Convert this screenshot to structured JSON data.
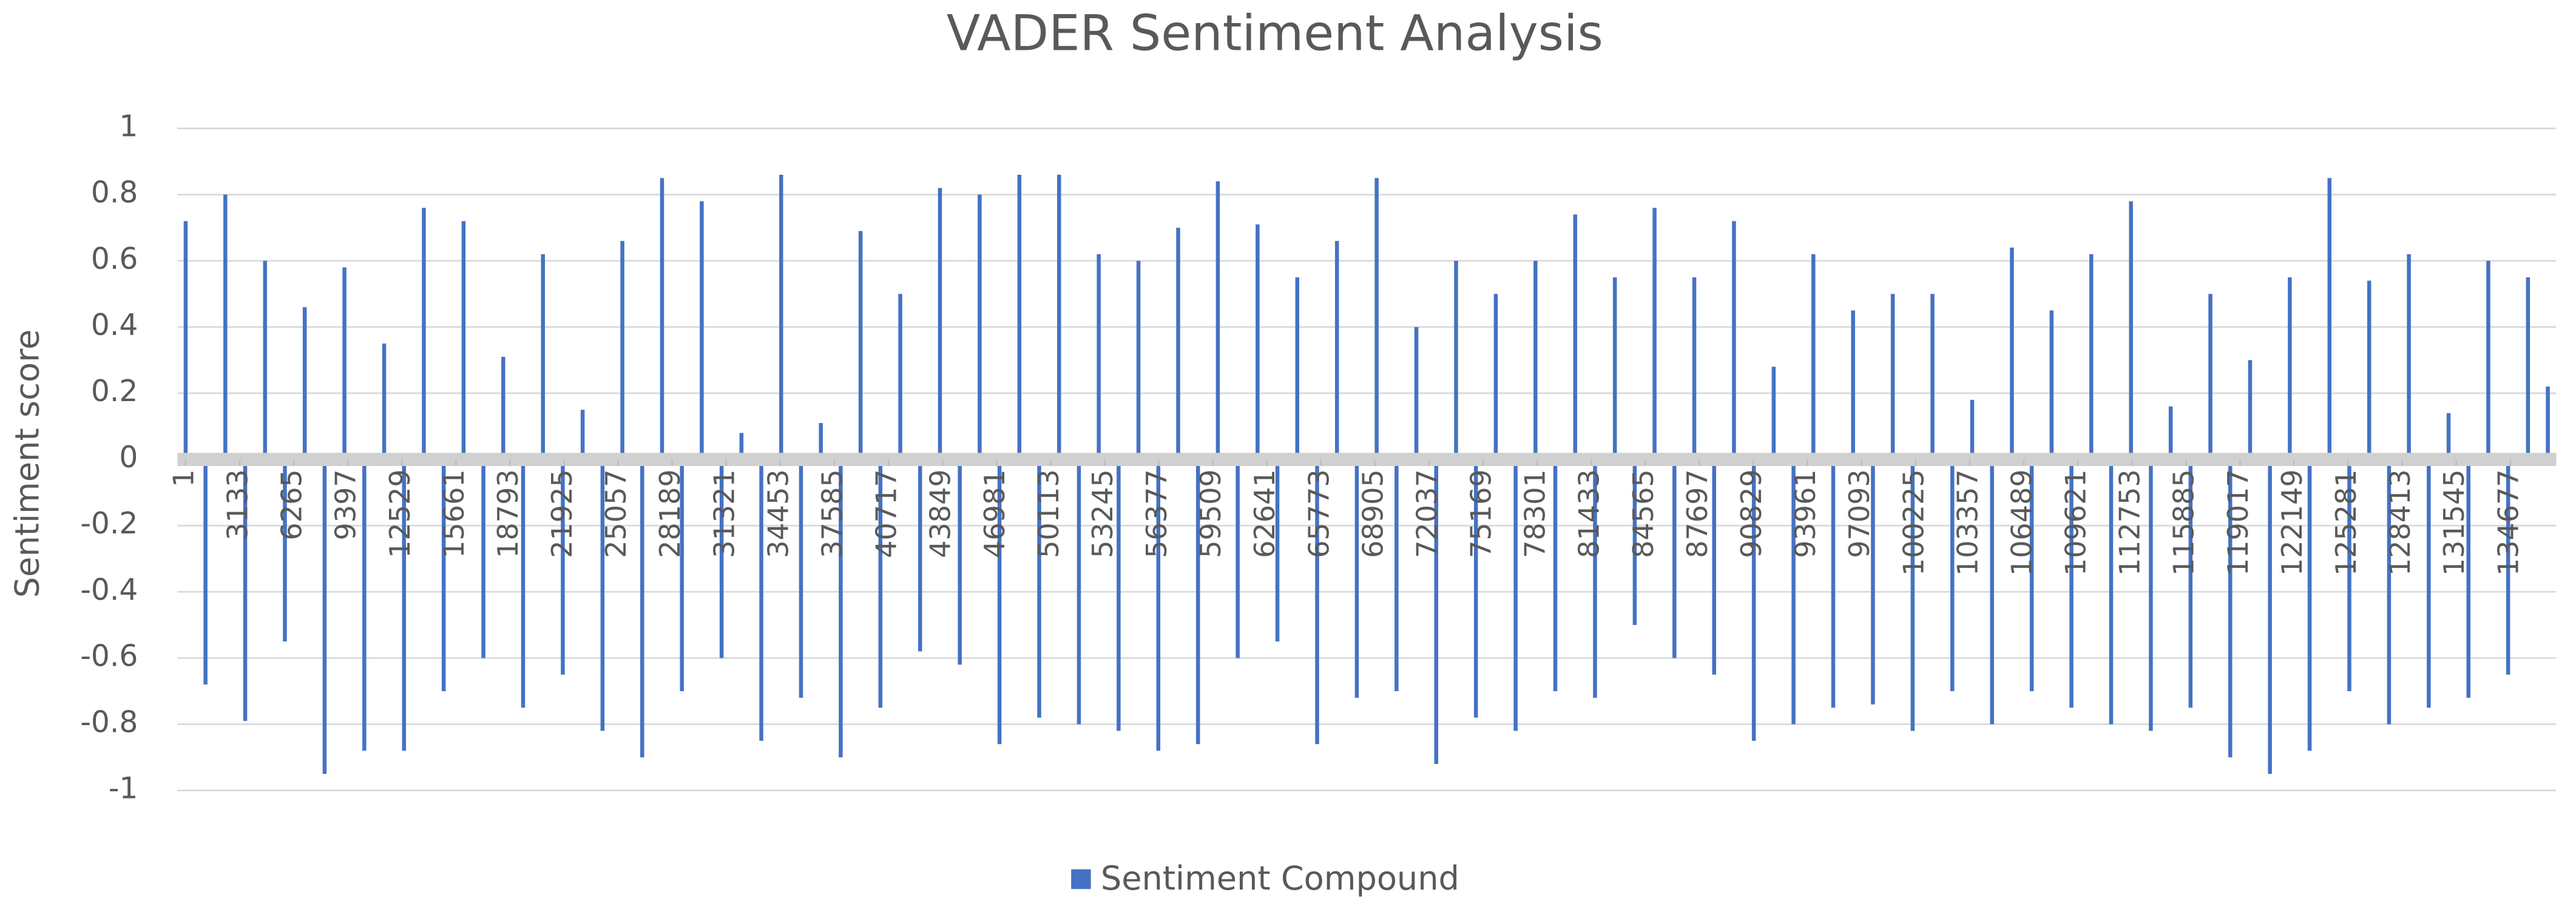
{
  "chart_data": {
    "type": "bar",
    "title": "VADER Sentiment Analysis",
    "y_label": "Sentiment score",
    "x": [
      1,
      1151,
      2301,
      3451,
      4601,
      5751,
      6901,
      8051,
      9201,
      10351,
      11501,
      12651,
      13801,
      14951,
      16101,
      17251,
      18401,
      19551,
      20701,
      21851,
      23001,
      24151,
      25301,
      26451,
      27601,
      28751,
      29901,
      31051,
      32201,
      33351,
      34501,
      35651,
      36801,
      37951,
      39101,
      40251,
      41401,
      42551,
      43701,
      44851,
      46001,
      47151,
      48301,
      49451,
      50601,
      51751,
      52901,
      54051,
      55201,
      56351,
      57501,
      58651,
      59801,
      60951,
      62101,
      63251,
      64401,
      65551,
      66701,
      67851,
      69001,
      70151,
      71301,
      72451,
      73601,
      74751,
      75901,
      77051,
      78201,
      79351,
      80501,
      81651,
      82801,
      83951,
      85101,
      86251,
      87401,
      88551,
      89701,
      90851,
      92001,
      93151,
      94301,
      95451,
      96601,
      97751,
      98901,
      100051,
      101201,
      102351,
      103501,
      104651,
      105801,
      106951,
      108101,
      109251,
      110401,
      111551,
      112701,
      113851,
      115001,
      116151,
      117301,
      118451,
      119601,
      120751,
      121901,
      123051,
      124201,
      125351,
      126501,
      127651,
      128801,
      129951,
      131101,
      132251,
      133401,
      134551,
      135701,
      136851
    ],
    "series": [
      {
        "name": "Sentiment Compound",
        "color": "#4472c4",
        "values": [
          0.72,
          -0.68,
          0.8,
          -0.79,
          0.6,
          -0.55,
          0.46,
          -0.95,
          0.58,
          -0.88,
          0.35,
          -0.88,
          0.76,
          -0.7,
          0.72,
          -0.6,
          0.31,
          -0.75,
          0.62,
          -0.65,
          0.15,
          -0.82,
          0.66,
          -0.9,
          0.85,
          -0.7,
          0.78,
          -0.6,
          0.08,
          -0.85,
          0.86,
          -0.72,
          0.11,
          -0.9,
          0.69,
          -0.75,
          0.5,
          -0.58,
          0.82,
          -0.62,
          0.8,
          -0.86,
          0.86,
          -0.78,
          0.86,
          -0.8,
          0.62,
          -0.82,
          0.6,
          -0.88,
          0.7,
          -0.86,
          0.84,
          -0.6,
          0.71,
          -0.55,
          0.55,
          -0.86,
          0.66,
          -0.72,
          0.85,
          -0.7,
          0.4,
          -0.92,
          0.6,
          -0.78,
          0.5,
          -0.82,
          0.6,
          -0.7,
          0.74,
          -0.72,
          0.55,
          -0.5,
          0.76,
          -0.6,
          0.55,
          -0.65,
          0.72,
          -0.85,
          0.28,
          -0.8,
          0.62,
          -0.75,
          0.45,
          -0.74,
          0.5,
          -0.82,
          0.5,
          -0.7,
          0.18,
          -0.8,
          0.64,
          -0.7,
          0.45,
          -0.75,
          0.62,
          -0.8,
          0.78,
          -0.82,
          0.16,
          -0.75,
          0.5,
          -0.9,
          0.3,
          -0.95,
          0.55,
          -0.88,
          0.85,
          -0.7,
          0.54,
          -0.8,
          0.62,
          -0.75,
          0.14,
          -0.72,
          0.6,
          -0.65,
          0.55,
          0.22
        ]
      }
    ],
    "xlim": [
      -475,
      137340
    ],
    "xticks": [
      1,
      3133,
      6265,
      9397,
      12529,
      15661,
      18793,
      21925,
      25057,
      28189,
      31321,
      34453,
      37585,
      40717,
      43849,
      46981,
      50113,
      53245,
      56377,
      59509,
      62641,
      65773,
      68905,
      72037,
      75169,
      78301,
      81433,
      84565,
      87697,
      90829,
      93961,
      97093,
      100225,
      103357,
      106489,
      109621,
      112753,
      115885,
      119017,
      122149,
      125281,
      128413,
      131545,
      134677
    ],
    "ylim": [
      -1,
      1
    ],
    "yticks": [
      1,
      0.8,
      0.6,
      0.4,
      0.2,
      0,
      -0.2,
      -0.4,
      -0.6,
      -0.8,
      -1
    ],
    "grid": true,
    "legend": "bottom"
  }
}
